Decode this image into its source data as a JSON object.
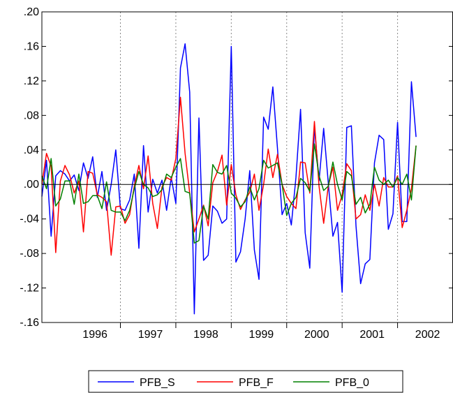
{
  "chart_data": {
    "type": "line",
    "title": "",
    "xlabel": "",
    "ylabel": "",
    "ylim": [
      -0.16,
      0.2
    ],
    "yticks": [
      0.2,
      0.16,
      0.12,
      0.08,
      0.04,
      0.0,
      -0.04,
      -0.08,
      -0.12,
      -0.16
    ],
    "ytick_labels": [
      ".20",
      ".16",
      ".12",
      ".08",
      ".04",
      ".00",
      "-.04",
      "-.08",
      "-.12",
      "-.16"
    ],
    "xlim": [
      "1995-07",
      "2002-12"
    ],
    "year_labels": [
      "1996",
      "1997",
      "1998",
      "1999",
      "2000",
      "2001",
      "2002"
    ],
    "year_boundaries": [
      "1996-12",
      "1997-12",
      "1998-12",
      "1999-12",
      "2000-12",
      "2001-12"
    ],
    "reference_line": 0.0,
    "grid": "vertical dotted at year boundaries",
    "legend_position": "bottom",
    "series": [
      {
        "name": "PFB_S",
        "color": "#0000ff",
        "values": [
          -0.014,
          0.028,
          -0.06,
          0.01,
          0.016,
          0.012,
          0.004,
          0.011,
          -0.007,
          0.025,
          0.007,
          0.032,
          -0.015,
          0.015,
          -0.03,
          0.0,
          0.04,
          -0.028,
          -0.03,
          -0.018,
          0.012,
          -0.074,
          0.045,
          -0.032,
          0.006,
          -0.01,
          0.005,
          -0.03,
          0.008,
          -0.022,
          0.135,
          0.163,
          0.107,
          -0.15,
          0.077,
          -0.088,
          -0.082,
          -0.025,
          -0.031,
          -0.045,
          -0.04,
          0.16,
          -0.09,
          -0.078,
          -0.04,
          0.016,
          -0.076,
          -0.11,
          0.078,
          0.064,
          0.113,
          0.042,
          -0.035,
          -0.022,
          -0.047,
          0.008,
          0.087,
          -0.056,
          -0.097,
          0.068,
          0.004,
          0.065,
          0.002,
          -0.06,
          -0.044,
          -0.125,
          0.066,
          0.068,
          -0.048,
          -0.115,
          -0.092,
          -0.087,
          0.025,
          0.057,
          0.052,
          -0.052,
          -0.034,
          0.072,
          -0.043,
          -0.043,
          0.119,
          0.055
        ]
      },
      {
        "name": "PFB_F",
        "color": "#ff0000",
        "values": [
          0.0,
          0.036,
          0.021,
          -0.079,
          0.004,
          0.022,
          0.011,
          -0.01,
          0.004,
          -0.055,
          0.015,
          0.013,
          -0.012,
          -0.015,
          -0.02,
          -0.082,
          -0.026,
          -0.025,
          -0.045,
          -0.035,
          -0.002,
          0.022,
          -0.005,
          0.033,
          -0.022,
          -0.051,
          -0.003,
          0.008,
          0.005,
          0.03,
          0.101,
          0.036,
          -0.01,
          -0.055,
          -0.04,
          -0.024,
          -0.048,
          0.002,
          0.015,
          0.034,
          -0.024,
          0.023,
          -0.012,
          -0.029,
          -0.018,
          -0.009,
          0.012,
          -0.03,
          0.0,
          0.041,
          0.008,
          0.035,
          0.0,
          -0.014,
          -0.022,
          -0.028,
          0.026,
          0.025,
          -0.01,
          0.073,
          -0.002,
          -0.045,
          -0.002,
          0.02,
          -0.03,
          -0.012,
          0.024,
          0.016,
          -0.04,
          -0.035,
          -0.012,
          -0.03,
          0.0,
          -0.025,
          0.008,
          -0.003,
          -0.003,
          0.01,
          -0.05,
          -0.03,
          -0.005,
          0.045
        ]
      },
      {
        "name": "PFB_0",
        "color": "#008000",
        "values": [
          0.01,
          -0.005,
          0.03,
          -0.025,
          -0.017,
          0.004,
          0.004,
          -0.023,
          0.012,
          -0.022,
          -0.02,
          -0.013,
          -0.013,
          -0.028,
          0.003,
          -0.03,
          -0.032,
          -0.032,
          -0.042,
          -0.03,
          -0.005,
          0.015,
          0.0,
          -0.004,
          -0.014,
          -0.012,
          -0.006,
          0.012,
          0.008,
          0.02,
          0.03,
          -0.008,
          -0.01,
          -0.068,
          -0.065,
          -0.025,
          -0.04,
          0.023,
          0.014,
          0.012,
          0.022,
          -0.01,
          -0.016,
          -0.026,
          -0.02,
          -0.003,
          -0.018,
          -0.005,
          0.028,
          0.019,
          0.022,
          0.025,
          0.0,
          -0.036,
          -0.022,
          -0.015,
          0.007,
          0.002,
          -0.008,
          0.047,
          0.01,
          -0.007,
          -0.002,
          0.026,
          0.0,
          -0.018,
          0.015,
          0.01,
          -0.023,
          -0.015,
          -0.033,
          -0.023,
          0.02,
          0.005,
          0.0,
          0.005,
          -0.003,
          0.008,
          0.0,
          0.012,
          -0.018,
          0.045
        ]
      }
    ]
  }
}
